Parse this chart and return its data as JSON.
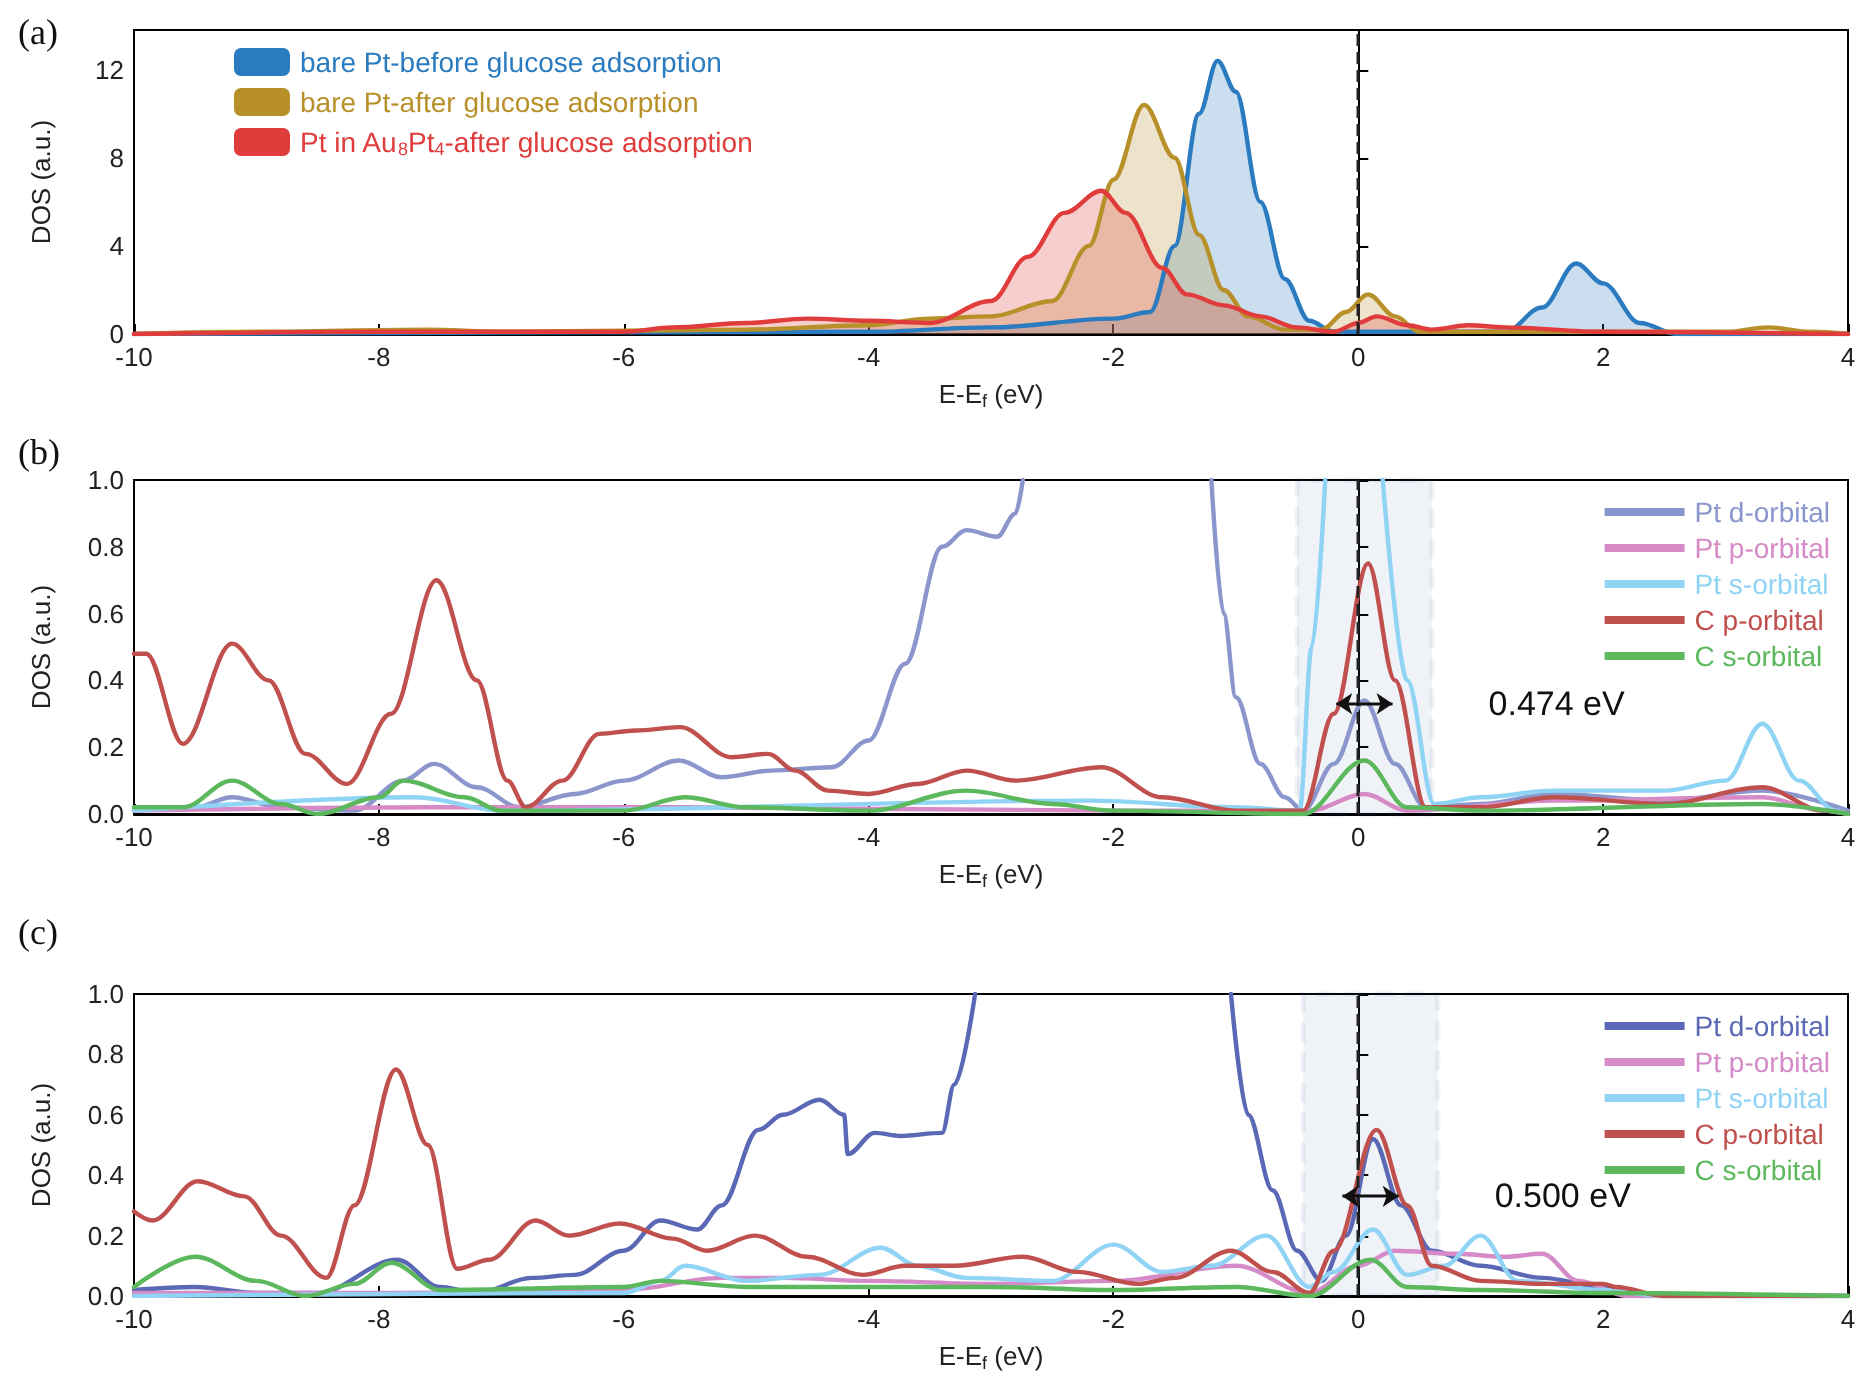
{
  "chart_data": [
    {
      "type": "area",
      "title": "(a)",
      "xlabel": "E-E$_{f}$ (eV)",
      "ylabel": "DOS (a.u.)",
      "xlim": [
        -10,
        4
      ],
      "ylim": [
        0,
        13.8
      ],
      "xticks": [
        -10,
        -8,
        -6,
        -4,
        -2,
        0,
        2,
        4
      ],
      "yticks": [
        0,
        4,
        8,
        12
      ],
      "grid": false,
      "legend": "top left",
      "ref_lines": [
        {
          "axis": "x",
          "value": 0,
          "label": null,
          "color": "#222222",
          "line_style": "dashed"
        }
      ],
      "series": [
        {
          "name": "bare Pt-before glucose adsorption",
          "color": "#2a7bbf",
          "x": [
            -10,
            -4,
            -3,
            -2,
            -1.7,
            -1.5,
            -1.3,
            -1.15,
            -1.0,
            -0.8,
            -0.6,
            -0.4,
            -0.2,
            0,
            0.5,
            1.2,
            1.5,
            1.78,
            2.0,
            2.3,
            2.6,
            4
          ],
          "values": [
            0,
            0.1,
            0.3,
            0.7,
            1.0,
            4,
            10,
            12.4,
            11,
            6,
            2.5,
            0.6,
            0.1,
            0.1,
            0.1,
            0.1,
            1.2,
            3.2,
            2.3,
            0.5,
            0,
            0
          ]
        },
        {
          "name": "bare Pt-after glucose adsorption",
          "color": "#b8902a",
          "x": [
            -10,
            -9,
            -7.6,
            -7,
            -5,
            -4,
            -3.5,
            -3,
            -2.5,
            -2.2,
            -2,
            -1.75,
            -1.5,
            -1.3,
            -1.1,
            -0.9,
            -0.6,
            -0.3,
            -0.1,
            0.08,
            0.3,
            0.5,
            1,
            3,
            3.35,
            3.7,
            4
          ],
          "values": [
            0,
            0.1,
            0.2,
            0.1,
            0.2,
            0.4,
            0.7,
            0.8,
            1.5,
            4,
            7,
            10.4,
            8,
            4.5,
            2,
            0.8,
            0.2,
            0.2,
            1.0,
            1.8,
            0.8,
            0.1,
            0.1,
            0.1,
            0.3,
            0.1,
            0
          ]
        },
        {
          "name": "Pt in Au$_{8}$Pt$_{4}$-after glucose adsorption",
          "color": "#e03c3c",
          "x": [
            -10,
            -8,
            -6,
            -5.6,
            -5,
            -4.5,
            -4,
            -3.5,
            -3,
            -2.7,
            -2.4,
            -2.1,
            -1.9,
            -1.6,
            -1.4,
            -1.1,
            -0.8,
            -0.5,
            -0.2,
            0,
            0.15,
            0.4,
            0.6,
            0.9,
            1.2,
            2,
            4
          ],
          "values": [
            0,
            0.1,
            0.1,
            0.3,
            0.5,
            0.7,
            0.6,
            0.5,
            1.5,
            3.5,
            5.5,
            6.5,
            5.5,
            3,
            1.8,
            1.3,
            0.8,
            0.3,
            0.1,
            0.5,
            0.8,
            0.4,
            0.2,
            0.4,
            0.3,
            0.1,
            0
          ]
        }
      ]
    },
    {
      "type": "line",
      "title": "(b)",
      "xlabel": "E-E$_{f}$ (eV)",
      "ylabel": "DOS (a.u.)",
      "xlim": [
        -10,
        4
      ],
      "ylim": [
        0,
        1
      ],
      "xticks": [
        -10,
        -8,
        -6,
        -4,
        -2,
        0,
        2,
        4
      ],
      "yticks": [
        {
          "value": 0,
          "label": "0.0"
        },
        {
          "value": 0.2,
          "label": "0.2"
        },
        {
          "value": 0.4,
          "label": "0.4"
        },
        {
          "value": 0.6,
          "label": "0.6"
        },
        {
          "value": 0.8,
          "label": "0.8"
        },
        {
          "value": 1,
          "label": "1.0"
        }
      ],
      "grid": false,
      "legend": "top right",
      "ref_lines": [
        {
          "axis": "x",
          "value": 0,
          "label": null,
          "color": "#222222",
          "line_style": "dashed"
        }
      ],
      "bands": [
        {
          "axis": "x",
          "from": -0.5,
          "to": 0.6,
          "label": null,
          "color": "#2f5597"
        }
      ],
      "annotations": [
        "0.474 eV"
      ],
      "series": [
        {
          "name": "Pt d-orbital",
          "color": "#8b96cc",
          "x": [
            -10,
            -9.5,
            -9.2,
            -8.8,
            -8.2,
            -7.8,
            -7.55,
            -7.2,
            -6.85,
            -6.4,
            -6,
            -5.55,
            -5.2,
            -4.8,
            -4.3,
            -4,
            -3.7,
            -3.4,
            -3.2,
            -2.95,
            -2.8,
            -2.74,
            -2,
            -1.2,
            -1.1,
            -1.0,
            -0.8,
            -0.6,
            -0.45,
            -0.2,
            0.05,
            0.3,
            0.55,
            1,
            1.6,
            2.5,
            3.3,
            4
          ],
          "values": [
            0.01,
            0.02,
            0.05,
            0.02,
            0.01,
            0.1,
            0.15,
            0.08,
            0.02,
            0.06,
            0.1,
            0.16,
            0.11,
            0.13,
            0.14,
            0.22,
            0.45,
            0.8,
            0.85,
            0.83,
            0.9,
            1.0,
            null,
            1.0,
            0.6,
            0.35,
            0.15,
            0.05,
            0.01,
            0.15,
            0.34,
            0.15,
            0.02,
            0.03,
            0.06,
            0.04,
            0.07,
            0.01
          ]
        },
        {
          "name": "Pt p-orbital",
          "color": "#d68ac6",
          "x": [
            -10,
            -7.5,
            -5.5,
            -2,
            -0.4,
            0.05,
            0.4,
            1.6,
            3.3,
            3.8,
            4
          ],
          "values": [
            0.01,
            0.02,
            0.02,
            0.01,
            0.01,
            0.06,
            0.01,
            0.04,
            0.05,
            0.01,
            0
          ]
        },
        {
          "name": "Pt s-orbital",
          "color": "#8fd4f4",
          "x": [
            -10,
            -7.7,
            -7,
            -2.2,
            -1,
            -0.48,
            -0.38,
            -0.27,
            0,
            0.2,
            0.4,
            0.62,
            1,
            1.6,
            2.5,
            3,
            3.3,
            3.6,
            3.9,
            4
          ],
          "values": [
            0.01,
            0.05,
            0.01,
            0.04,
            0.02,
            0.01,
            0.5,
            1.0,
            null,
            1.0,
            0.4,
            0.03,
            0.05,
            0.07,
            0.07,
            0.1,
            0.27,
            0.1,
            0.01,
            0
          ]
        },
        {
          "name": "C p-orbital",
          "color": "#c0504d",
          "x": [
            -10,
            -9.9,
            -9.6,
            -9.2,
            -8.9,
            -8.6,
            -8.26,
            -7.9,
            -7.53,
            -7.2,
            -6.95,
            -6.8,
            -6.5,
            -6.2,
            -5.9,
            -5.54,
            -5.12,
            -4.82,
            -4.6,
            -4.33,
            -4,
            -3.6,
            -3.2,
            -2.8,
            -2.1,
            -1.6,
            -1,
            -0.45,
            -0.2,
            0.08,
            0.3,
            0.55,
            1,
            1.6,
            2.5,
            3.3,
            3.8,
            4
          ],
          "values": [
            0.48,
            0.48,
            0.21,
            0.51,
            0.4,
            0.18,
            0.09,
            0.3,
            0.7,
            0.4,
            0.1,
            0.02,
            0.1,
            0.24,
            0.25,
            0.26,
            0.17,
            0.18,
            0.13,
            0.07,
            0.06,
            0.09,
            0.13,
            0.1,
            0.14,
            0.05,
            0.01,
            0.01,
            0.3,
            0.75,
            0.4,
            0.02,
            0.02,
            0.05,
            0.03,
            0.08,
            0.01,
            0
          ]
        },
        {
          "name": "C s-orbital",
          "color": "#5cb85c",
          "x": [
            -10,
            -9.6,
            -9.2,
            -8.8,
            -8.5,
            -8,
            -7.8,
            -7.3,
            -7,
            -6,
            -5.5,
            -5,
            -4,
            -3.2,
            -2.5,
            -2,
            -0.45,
            0.05,
            0.4,
            1,
            3.3,
            4
          ],
          "values": [
            0.02,
            0.02,
            0.1,
            0.03,
            0,
            0.05,
            0.1,
            0.05,
            0.01,
            0.01,
            0.05,
            0.02,
            0.01,
            0.07,
            0.03,
            0.01,
            0,
            0.16,
            0.02,
            0.01,
            0.03,
            0
          ]
        }
      ]
    },
    {
      "type": "line",
      "title": "(c)",
      "xlabel": "E-E$_{f}$ (eV)",
      "ylabel": "DOS (a.u.)",
      "xlim": [
        -10,
        4
      ],
      "ylim": [
        0,
        1
      ],
      "xticks": [
        -10,
        -8,
        -6,
        -4,
        -2,
        0,
        2,
        4
      ],
      "yticks": [
        {
          "value": 0,
          "label": "0.0"
        },
        {
          "value": 0.2,
          "label": "0.2"
        },
        {
          "value": 0.4,
          "label": "0.4"
        },
        {
          "value": 0.6,
          "label": "0.6"
        },
        {
          "value": 0.8,
          "label": "0.8"
        },
        {
          "value": 1,
          "label": "1.0"
        }
      ],
      "grid": false,
      "legend": "top right",
      "ref_lines": [
        {
          "axis": "x",
          "value": 0,
          "label": null,
          "color": "#222222",
          "line_style": "dashed"
        }
      ],
      "bands": [
        {
          "axis": "x",
          "from": -0.45,
          "to": 0.65,
          "label": null,
          "color": "#2f5597"
        }
      ],
      "annotations": [
        "0.500 eV"
      ],
      "series": [
        {
          "name": "Pt d-orbital",
          "color": "#5a68b5",
          "x": [
            -10,
            -9.5,
            -9,
            -8.5,
            -7.85,
            -7.5,
            -7.2,
            -6.75,
            -6.4,
            -6,
            -5.7,
            -5.4,
            -5.2,
            -4.9,
            -4.7,
            -4.4,
            -4.2,
            -4.17,
            -3.95,
            -3.74,
            -3.4,
            -3.3,
            -3.13,
            -2,
            -1.04,
            -0.9,
            -0.7,
            -0.5,
            -0.3,
            -0.1,
            0.12,
            0.35,
            0.6,
            1,
            1.5,
            2,
            2.3,
            4
          ],
          "values": [
            0.02,
            0.03,
            0.01,
            0.01,
            0.12,
            0.03,
            0.01,
            0.06,
            0.07,
            0.15,
            0.25,
            0.22,
            0.3,
            0.55,
            0.6,
            0.65,
            0.6,
            0.47,
            0.54,
            0.53,
            0.54,
            0.7,
            1.0,
            null,
            1.0,
            0.6,
            0.35,
            0.15,
            0.05,
            0.2,
            0.52,
            0.3,
            0.15,
            0.1,
            0.06,
            0.03,
            0,
            0
          ]
        },
        {
          "name": "Pt p-orbital",
          "color": "#d48bc8",
          "x": [
            -10,
            -8,
            -6,
            -5.2,
            -4.7,
            -4,
            -3,
            -2,
            -1,
            -0.4,
            0,
            0.3,
            0.8,
            1.2,
            1.5,
            1.8,
            2.2,
            4
          ],
          "values": [
            0.01,
            0.01,
            0.02,
            0.06,
            0.06,
            0.05,
            0.04,
            0.05,
            0.1,
            0.01,
            0.1,
            0.15,
            0.14,
            0.13,
            0.14,
            0.05,
            0,
            0
          ]
        },
        {
          "name": "Pt s-orbital",
          "color": "#91d3f5",
          "x": [
            -10,
            -6,
            -5.7,
            -5.5,
            -5,
            -4.4,
            -3.9,
            -3.6,
            -3.2,
            -2.5,
            -2,
            -1.6,
            -1.2,
            -0.75,
            -0.4,
            -0.2,
            0.12,
            0.4,
            0.7,
            1,
            1.3,
            2,
            2.5,
            4
          ],
          "values": [
            0,
            0.01,
            0.05,
            0.1,
            0.05,
            0.07,
            0.16,
            0.1,
            0.06,
            0.05,
            0.17,
            0.08,
            0.1,
            0.2,
            0.03,
            0.08,
            0.22,
            0.07,
            0.1,
            0.2,
            0.05,
            0.02,
            0,
            0
          ]
        },
        {
          "name": "C p-orbital",
          "color": "#c0504d",
          "x": [
            -10,
            -9.85,
            -9.48,
            -9.1,
            -8.8,
            -8.43,
            -8.2,
            -7.86,
            -7.6,
            -7.36,
            -7.1,
            -6.72,
            -6.45,
            -6.03,
            -5.6,
            -5.32,
            -4.93,
            -4.5,
            -4.05,
            -3.7,
            -3.3,
            -2.74,
            -2.3,
            -1.8,
            -1.5,
            -1.04,
            -0.7,
            -0.4,
            -0.2,
            0.15,
            0.4,
            0.6,
            1,
            1.5,
            2,
            2.1,
            2.5,
            4
          ],
          "values": [
            0.28,
            0.25,
            0.38,
            0.33,
            0.2,
            0.06,
            0.3,
            0.75,
            0.5,
            0.09,
            0.12,
            0.25,
            0.2,
            0.24,
            0.19,
            0.15,
            0.2,
            0.13,
            0.07,
            0.1,
            0.1,
            0.13,
            0.08,
            0.04,
            0.06,
            0.15,
            0.08,
            0.01,
            0.15,
            0.55,
            0.3,
            0.1,
            0.05,
            0.04,
            0.04,
            0.03,
            0,
            0
          ]
        },
        {
          "name": "C s-orbital",
          "color": "#5cb85c",
          "x": [
            -10,
            -9.5,
            -9,
            -8.6,
            -8.2,
            -7.9,
            -7.5,
            -6,
            -5.7,
            -5,
            -4,
            -3,
            -2,
            -1,
            -0.4,
            0.1,
            0.4,
            1,
            2,
            4
          ],
          "values": [
            0.03,
            0.13,
            0.05,
            0,
            0.04,
            0.11,
            0.02,
            0.03,
            0.05,
            0.03,
            0.03,
            0.03,
            0.02,
            0.03,
            0,
            0.12,
            0.03,
            0.02,
            0.01,
            0
          ]
        }
      ]
    }
  ]
}
